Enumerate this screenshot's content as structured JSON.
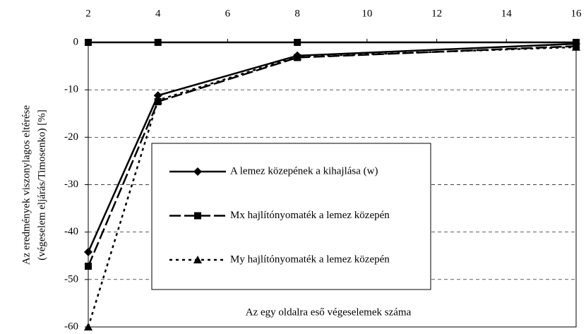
{
  "chart_data": {
    "type": "line",
    "x_label": "Az egy oldalra eső végeselemek száma",
    "y_label": [
      "Az eredmények viszonylagos eltérése",
      "(végeselem eljárás/Timosenko) [%]"
    ],
    "x": [
      2,
      4,
      8,
      16
    ],
    "series": [
      {
        "name": "A lemez közepének a kihajlása (w)",
        "color": "#000000",
        "marker": "diamond",
        "dash": "solid",
        "values": [
          -44.2,
          -11.2,
          -2.8,
          -0.3
        ]
      },
      {
        "name": "Mx hajlítónyomaték a lemez közepén",
        "color": "#000000",
        "marker": "square",
        "dash": "long",
        "values": [
          -47.2,
          -12.5,
          -3.2,
          -0.8
        ]
      },
      {
        "name": "My hajlítónyomaték a lemez közepén",
        "color": "#000000",
        "marker": "triangle",
        "dash": "dotted",
        "values": [
          -60,
          -12.2,
          -3.0,
          -1.0
        ]
      },
      {
        "color": "#000000",
        "marker": "square",
        "dash": "solid",
        "values": [
          0,
          0,
          0,
          0
        ]
      }
    ],
    "xlim": [
      2,
      16
    ],
    "xticks": [
      2,
      4,
      6,
      8,
      10,
      12,
      14,
      16
    ],
    "ylim": [
      -60,
      0
    ],
    "yticks": [
      0,
      -10,
      -20,
      -30,
      -40,
      -50,
      -60
    ],
    "grid": true
  }
}
